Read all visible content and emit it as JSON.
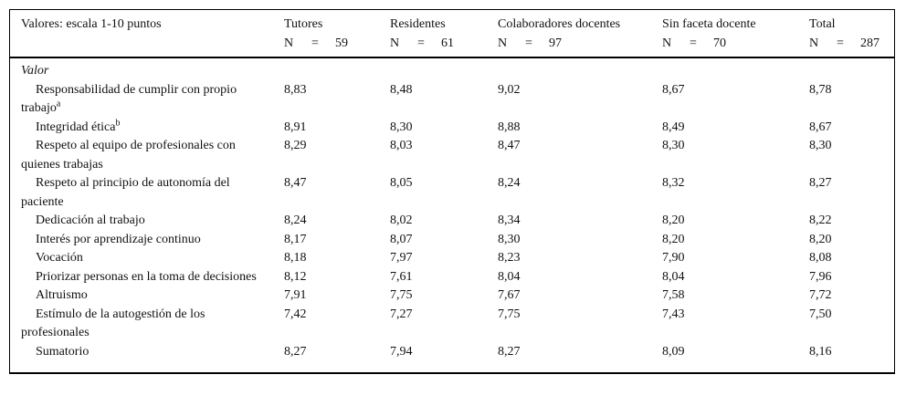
{
  "table": {
    "header": {
      "label": "Valores: escala 1-10 puntos",
      "n_label": "N",
      "eq": "=",
      "columns": [
        {
          "name": "Tutores",
          "n": "59"
        },
        {
          "name": "Residentes",
          "n": "61"
        },
        {
          "name": "Colaboradores docentes",
          "n": "97"
        },
        {
          "name": "Sin faceta docente",
          "n": "70"
        },
        {
          "name": "Total",
          "n": "287"
        }
      ]
    },
    "section_label": "Valor",
    "rows": [
      {
        "label": "Responsabilidad de cumplir con propio trabajo",
        "sup": "a",
        "values": [
          "8,83",
          "8,48",
          "9,02",
          "8,67",
          "8,78"
        ]
      },
      {
        "label": "Integridad ética",
        "sup": "b",
        "values": [
          "8,91",
          "8,30",
          "8,88",
          "8,49",
          "8,67"
        ]
      },
      {
        "label": "Respeto al equipo de profesionales con quienes trabajas",
        "values": [
          "8,29",
          "8,03",
          "8,47",
          "8,30",
          "8,30"
        ]
      },
      {
        "label": "Respeto al principio de autonomía del paciente",
        "values": [
          "8,47",
          "8,05",
          "8,24",
          "8,32",
          "8,27"
        ]
      },
      {
        "label": "Dedicación al trabajo",
        "values": [
          "8,24",
          "8,02",
          "8,34",
          "8,20",
          "8,22"
        ]
      },
      {
        "label": "Interés por aprendizaje continuo",
        "values": [
          "8,17",
          "8,07",
          "8,30",
          "8,20",
          "8,20"
        ]
      },
      {
        "label": "Vocación",
        "values": [
          "8,18",
          "7,97",
          "8,23",
          "7,90",
          "8,08"
        ]
      },
      {
        "label": "Priorizar personas en la toma de decisiones",
        "values": [
          "8,12",
          "7,61",
          "8,04",
          "8,04",
          "7,96"
        ]
      },
      {
        "label": "Altruismo",
        "values": [
          "7,91",
          "7,75",
          "7,67",
          "7,58",
          "7,72"
        ]
      },
      {
        "label": "Estímulo de la autogestión de los profesionales",
        "values": [
          "7,42",
          "7,27",
          "7,75",
          "7,43",
          "7,50"
        ]
      },
      {
        "label": "Sumatorio",
        "values": [
          "8,27",
          "7,94",
          "8,27",
          "8,09",
          "8,16"
        ]
      }
    ]
  }
}
